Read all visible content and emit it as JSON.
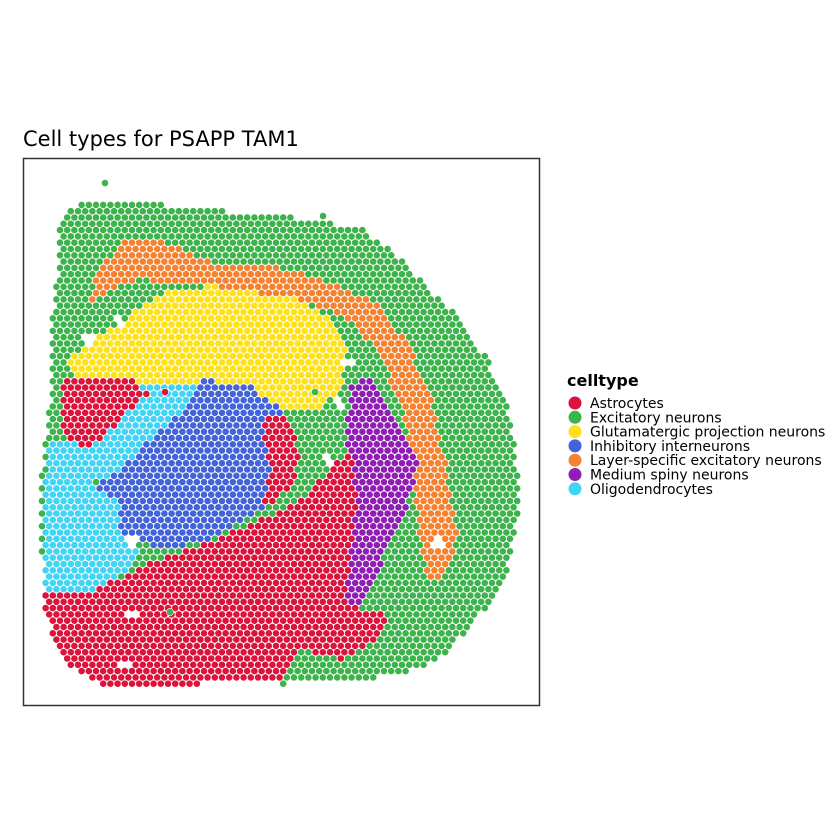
{
  "chart_data": {
    "type": "scatter",
    "title": "Cell types for PSAPP TAM1",
    "xlabel": "",
    "ylabel": "",
    "grid": false,
    "legend_position": "right",
    "legend": {
      "title": "celltype",
      "entries": [
        {
          "name": "Astrocytes",
          "color": "#DC143C"
        },
        {
          "name": "Excitatory neurons",
          "color": "#3CB44B"
        },
        {
          "name": "Glutamatergic projection neurons",
          "color": "#FFE119"
        },
        {
          "name": "Inhibitory interneurons",
          "color": "#4363D8"
        },
        {
          "name": "Layer-specific excitatory neurons",
          "color": "#F58231"
        },
        {
          "name": "Medium spiny neurons",
          "color": "#911EB4"
        },
        {
          "name": "Oligodendrocytes",
          "color": "#42D4F4"
        }
      ]
    }
  }
}
